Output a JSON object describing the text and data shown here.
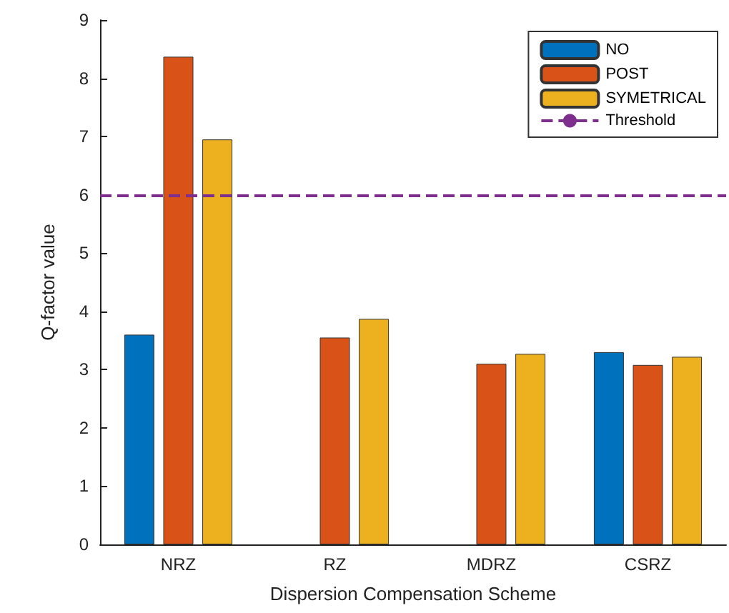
{
  "chart_data": {
    "type": "bar",
    "xlabel": "Dispersion Compensation Scheme",
    "ylabel": "Q-factor value",
    "categories": [
      "NRZ",
      "RZ",
      "MDRZ",
      "CSRZ"
    ],
    "series": [
      {
        "name": "NO",
        "color": "#0072bd",
        "values": [
          3.6,
          null,
          null,
          3.3
        ]
      },
      {
        "name": "POST",
        "color": "#d95319",
        "values": [
          8.37,
          3.55,
          3.1,
          3.08
        ]
      },
      {
        "name": "SYMETRICAL",
        "color": "#edb120",
        "values": [
          6.95,
          3.87,
          3.27,
          3.22
        ]
      }
    ],
    "ylim": [
      0,
      9
    ],
    "yticks": [
      0,
      1,
      2,
      3,
      4,
      5,
      6,
      7,
      8,
      9
    ],
    "ref_lines": [
      {
        "axis": "y",
        "value": 6,
        "label": "Threshold",
        "color": "#7e2f8e",
        "line_style": "dashed"
      }
    ],
    "legend": "top right",
    "grid": false
  }
}
